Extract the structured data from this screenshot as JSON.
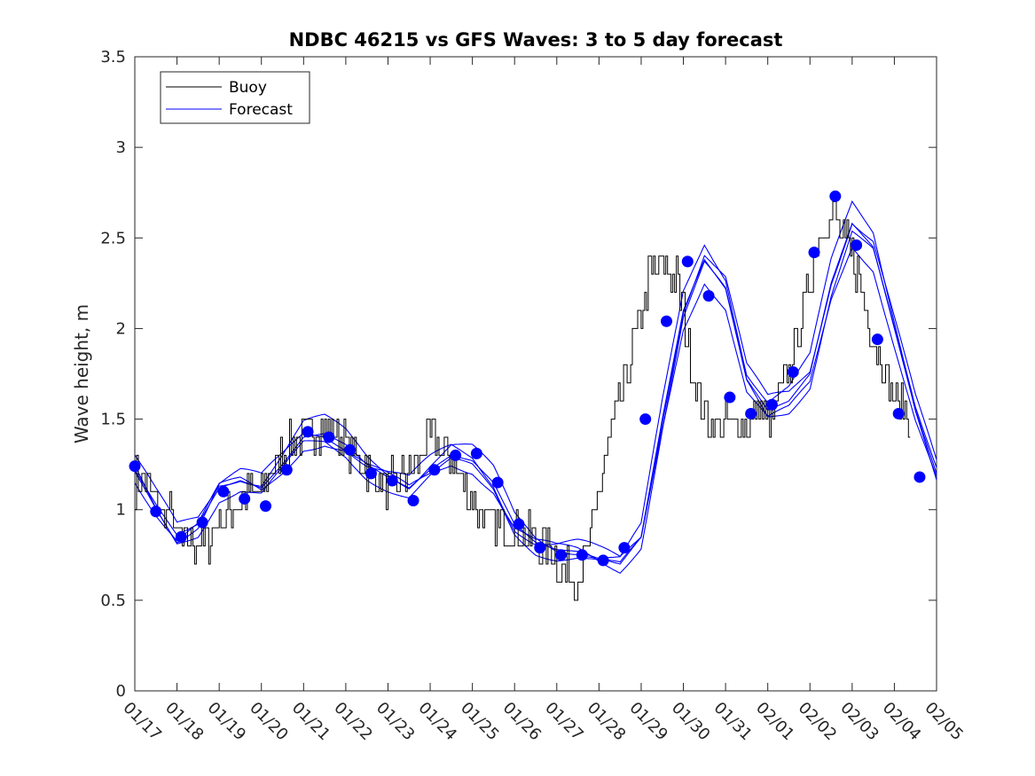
{
  "chart_data": {
    "type": "line",
    "title": "NDBC 46215 vs GFS Waves: 3 to 5 day forecast",
    "xlabel": "",
    "ylabel": "Wave height, m",
    "ylim": [
      0,
      3.5
    ],
    "xlim": [
      0,
      19
    ],
    "yticks": [
      0,
      0.5,
      1,
      1.5,
      2,
      2.5,
      3,
      3.5
    ],
    "ytick_labels": [
      "0",
      "0.5",
      "1",
      "1.5",
      "2",
      "2.5",
      "3",
      "3.5"
    ],
    "xticks": [
      0,
      1,
      2,
      3,
      4,
      5,
      6,
      7,
      8,
      9,
      10,
      11,
      12,
      13,
      14,
      15,
      16,
      17,
      18,
      19
    ],
    "xtick_labels": [
      "01/17",
      "01/18",
      "01/19",
      "01/20",
      "01/21",
      "01/22",
      "01/23",
      "01/24",
      "01/25",
      "01/26",
      "01/27",
      "01/28",
      "01/29",
      "01/30",
      "01/31",
      "02/01",
      "02/02",
      "02/03",
      "02/04",
      "02/05"
    ],
    "legend": {
      "position": "top-left",
      "entries": [
        {
          "label": "Buoy",
          "color": "#000000"
        },
        {
          "label": "Forecast",
          "color": "#0000ff"
        }
      ]
    },
    "colors": {
      "buoy": "#000000",
      "forecast": "#0000ff",
      "marker": "#0000ff"
    },
    "series": [
      {
        "name": "Buoy",
        "kind": "stepped-noisy",
        "x": [
          0,
          0.2,
          0.4,
          0.6,
          0.9,
          1.0,
          1.2,
          1.5,
          1.8,
          2.0,
          2.2,
          2.5,
          3.0,
          3.2,
          3.5,
          3.7,
          4.0,
          4.3,
          4.6,
          4.8,
          5.0,
          5.3,
          5.6,
          5.8,
          6.0,
          6.2,
          6.5,
          6.8,
          7.0,
          7.2,
          7.5,
          7.7,
          7.9,
          8.1,
          8.4,
          8.7,
          9.0,
          9.3,
          9.6,
          9.9,
          10.2,
          10.5,
          10.8,
          11.0,
          11.2,
          11.5,
          11.8,
          12.0,
          12.2,
          12.5,
          12.8,
          13.0,
          13.2,
          13.4,
          13.6,
          13.8,
          14.0,
          14.2,
          14.5,
          14.8,
          15.0,
          15.3,
          15.6,
          15.8,
          16.0,
          16.2,
          16.4,
          16.6,
          16.8,
          17.0,
          17.2,
          17.4,
          17.6,
          17.8,
          18.0,
          18.2,
          18.4
        ],
        "values": [
          1.15,
          1.2,
          1.1,
          1.0,
          0.95,
          0.85,
          0.82,
          0.8,
          0.85,
          0.95,
          1.0,
          1.05,
          1.1,
          1.2,
          1.3,
          1.35,
          1.4,
          1.45,
          1.45,
          1.4,
          1.35,
          1.3,
          1.2,
          1.15,
          1.15,
          1.15,
          1.2,
          1.3,
          1.4,
          1.35,
          1.3,
          1.2,
          1.1,
          1.0,
          0.95,
          0.9,
          0.9,
          0.85,
          0.8,
          0.75,
          0.65,
          0.65,
          0.8,
          1.1,
          1.35,
          1.6,
          1.9,
          2.1,
          2.3,
          2.35,
          2.3,
          2.1,
          1.75,
          1.6,
          1.5,
          1.45,
          1.45,
          1.45,
          1.5,
          1.55,
          1.5,
          1.6,
          1.85,
          2.05,
          2.3,
          2.5,
          2.6,
          2.6,
          2.5,
          2.4,
          2.25,
          2.05,
          1.9,
          1.75,
          1.6,
          1.55,
          1.5
        ]
      },
      {
        "name": "Forecast",
        "kind": "ensemble",
        "x": [
          0,
          0.5,
          1.0,
          1.5,
          2.0,
          2.5,
          3.0,
          3.5,
          4.0,
          4.5,
          5.0,
          5.5,
          6.0,
          6.5,
          7.0,
          7.5,
          8.0,
          8.5,
          9.0,
          9.5,
          10.0,
          10.5,
          11.0,
          11.5,
          12.0,
          12.5,
          13.0,
          13.5,
          14.0,
          14.5,
          15.0,
          15.5,
          16.0,
          16.5,
          17.0,
          17.5,
          18.0,
          18.5,
          19.0
        ],
        "values": [
          1.22,
          1.03,
          0.86,
          0.92,
          1.12,
          1.16,
          1.12,
          1.25,
          1.4,
          1.42,
          1.36,
          1.25,
          1.18,
          1.12,
          1.22,
          1.3,
          1.27,
          1.15,
          0.92,
          0.82,
          0.78,
          0.77,
          0.73,
          0.7,
          0.85,
          1.5,
          2.1,
          2.38,
          2.22,
          1.72,
          1.55,
          1.6,
          1.75,
          2.25,
          2.58,
          2.45,
          2.0,
          1.55,
          1.2
        ]
      },
      {
        "name": "Forecast markers",
        "kind": "markers",
        "x": [
          0.0,
          0.5,
          1.1,
          1.6,
          2.1,
          2.6,
          3.1,
          3.6,
          4.1,
          4.6,
          5.1,
          5.6,
          6.1,
          6.6,
          7.1,
          7.6,
          8.1,
          8.6,
          9.1,
          9.6,
          10.1,
          10.6,
          11.1,
          11.6,
          12.1,
          12.6,
          13.1,
          13.6,
          14.1,
          14.6,
          15.1,
          15.6,
          16.1,
          16.6,
          17.1,
          17.6,
          18.1,
          18.6
        ],
        "values": [
          1.24,
          0.99,
          0.85,
          0.93,
          1.1,
          1.06,
          1.02,
          1.22,
          1.43,
          1.4,
          1.33,
          1.2,
          1.16,
          1.05,
          1.22,
          1.3,
          1.31,
          1.15,
          0.92,
          0.79,
          0.75,
          0.75,
          0.72,
          0.79,
          1.5,
          2.04,
          2.37,
          2.18,
          1.62,
          1.53,
          1.58,
          1.76,
          2.42,
          2.73,
          2.46,
          1.94,
          1.53,
          1.18
        ]
      }
    ]
  }
}
